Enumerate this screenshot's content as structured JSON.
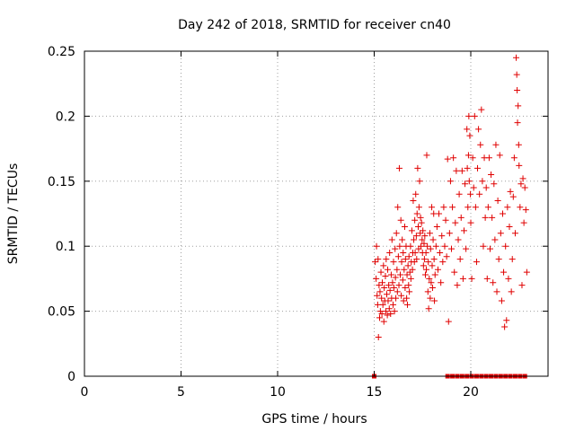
{
  "chart_data": {
    "type": "scatter",
    "title": "Day 242 of 2018, SRMTID for receiver cn40",
    "xlabel": "GPS time / hours",
    "ylabel": "SRMTID / TECUs",
    "xlim": [
      0,
      24
    ],
    "ylim": [
      0,
      0.25
    ],
    "xticks": [
      0,
      5,
      10,
      15,
      20
    ],
    "xtick_labels": [
      "0",
      "5",
      "10",
      "15",
      "20"
    ],
    "yticks": [
      0,
      0.05,
      0.1,
      0.15,
      0.2,
      0.25
    ],
    "ytick_labels": [
      "0",
      "0.05",
      "0.1",
      "0.15",
      "0.2",
      "0.25"
    ],
    "grid": true,
    "marker": "+",
    "color": "#e00000",
    "zero_markers_x": [
      15.0,
      18.8,
      19.05,
      19.3,
      19.55,
      19.8,
      20.05,
      20.3,
      20.55,
      20.8,
      21.05,
      21.3,
      21.55,
      21.8,
      22.05,
      22.3,
      22.55,
      22.8
    ],
    "points": [
      [
        15.05,
        0.088
      ],
      [
        15.1,
        0.075
      ],
      [
        15.12,
        0.1
      ],
      [
        15.15,
        0.062
      ],
      [
        15.18,
        0.055
      ],
      [
        15.2,
        0.09
      ],
      [
        15.22,
        0.03
      ],
      [
        15.25,
        0.07
      ],
      [
        15.28,
        0.045
      ],
      [
        15.3,
        0.065
      ],
      [
        15.32,
        0.05
      ],
      [
        15.35,
        0.08
      ],
      [
        15.38,
        0.06
      ],
      [
        15.4,
        0.048
      ],
      [
        15.42,
        0.072
      ],
      [
        15.45,
        0.055
      ],
      [
        15.48,
        0.085
      ],
      [
        15.5,
        0.042
      ],
      [
        15.52,
        0.068
      ],
      [
        15.55,
        0.058
      ],
      [
        15.58,
        0.077
      ],
      [
        15.6,
        0.05
      ],
      [
        15.62,
        0.09
      ],
      [
        15.65,
        0.063
      ],
      [
        15.68,
        0.047
      ],
      [
        15.7,
        0.082
      ],
      [
        15.72,
        0.058
      ],
      [
        15.75,
        0.07
      ],
      [
        15.78,
        0.052
      ],
      [
        15.8,
        0.095
      ],
      [
        15.82,
        0.066
      ],
      [
        15.85,
        0.048
      ],
      [
        15.88,
        0.078
      ],
      [
        15.9,
        0.06
      ],
      [
        15.92,
        0.105
      ],
      [
        15.95,
        0.072
      ],
      [
        15.98,
        0.055
      ],
      [
        16.0,
        0.088
      ],
      [
        16.02,
        0.068
      ],
      [
        16.05,
        0.05
      ],
      [
        16.08,
        0.098
      ],
      [
        16.1,
        0.076
      ],
      [
        16.12,
        0.06
      ],
      [
        16.15,
        0.11
      ],
      [
        16.18,
        0.082
      ],
      [
        16.2,
        0.065
      ],
      [
        16.22,
        0.13
      ],
      [
        16.25,
        0.092
      ],
      [
        16.28,
        0.07
      ],
      [
        16.3,
        0.16
      ],
      [
        16.32,
        0.1
      ],
      [
        16.35,
        0.078
      ],
      [
        16.38,
        0.12
      ],
      [
        16.4,
        0.062
      ],
      [
        16.42,
        0.088
      ],
      [
        16.45,
        0.105
      ],
      [
        16.48,
        0.074
      ],
      [
        16.5,
        0.095
      ],
      [
        16.52,
        0.058
      ],
      [
        16.55,
        0.082
      ],
      [
        16.58,
        0.115
      ],
      [
        16.6,
        0.068
      ],
      [
        16.62,
        0.09
      ],
      [
        16.65,
        0.1
      ],
      [
        16.68,
        0.06
      ],
      [
        16.7,
        0.078
      ],
      [
        16.72,
        0.055
      ],
      [
        16.75,
        0.085
      ],
      [
        16.78,
        0.07
      ],
      [
        16.8,
        0.092
      ],
      [
        16.82,
        0.065
      ],
      [
        16.85,
        0.08
      ],
      [
        16.88,
        0.1
      ],
      [
        16.9,
        0.075
      ],
      [
        16.92,
        0.088
      ],
      [
        16.95,
        0.112
      ],
      [
        16.98,
        0.082
      ],
      [
        17.0,
        0.095
      ],
      [
        17.02,
        0.135
      ],
      [
        17.05,
        0.105
      ],
      [
        17.08,
        0.088
      ],
      [
        17.1,
        0.12
      ],
      [
        17.12,
        0.095
      ],
      [
        17.15,
        0.14
      ],
      [
        17.18,
        0.108
      ],
      [
        17.2,
        0.09
      ],
      [
        17.22,
        0.125
      ],
      [
        17.25,
        0.16
      ],
      [
        17.28,
        0.115
      ],
      [
        17.3,
        0.098
      ],
      [
        17.32,
        0.13
      ],
      [
        17.35,
        0.15
      ],
      [
        17.38,
        0.11
      ],
      [
        17.4,
        0.122
      ],
      [
        17.42,
        0.1
      ],
      [
        17.45,
        0.118
      ],
      [
        17.48,
        0.105
      ],
      [
        17.5,
        0.095
      ],
      [
        17.52,
        0.112
      ],
      [
        17.55,
        0.085
      ],
      [
        17.58,
        0.102
      ],
      [
        17.6,
        0.09
      ],
      [
        17.62,
        0.108
      ],
      [
        17.65,
        0.078
      ],
      [
        17.68,
        0.095
      ],
      [
        17.7,
        0.082
      ],
      [
        17.72,
        0.17
      ],
      [
        17.75,
        0.1
      ],
      [
        17.78,
        0.065
      ],
      [
        17.8,
        0.088
      ],
      [
        17.82,
        0.052
      ],
      [
        17.85,
        0.075
      ],
      [
        17.88,
        0.11
      ],
      [
        17.9,
        0.06
      ],
      [
        17.92,
        0.098
      ],
      [
        17.95,
        0.072
      ],
      [
        17.98,
        0.13
      ],
      [
        18.0,
        0.085
      ],
      [
        18.02,
        0.068
      ],
      [
        18.05,
        0.105
      ],
      [
        18.08,
        0.125
      ],
      [
        18.1,
        0.09
      ],
      [
        18.12,
        0.058
      ],
      [
        18.15,
        0.078
      ],
      [
        18.2,
        0.1
      ],
      [
        18.25,
        0.115
      ],
      [
        18.3,
        0.082
      ],
      [
        18.35,
        0.125
      ],
      [
        18.4,
        0.095
      ],
      [
        18.45,
        0.072
      ],
      [
        18.5,
        0.108
      ],
      [
        18.55,
        0.088
      ],
      [
        18.6,
        0.13
      ],
      [
        18.65,
        0.1
      ],
      [
        18.7,
        0.12
      ],
      [
        18.75,
        0.092
      ],
      [
        18.8,
        0.167
      ],
      [
        18.85,
        0.042
      ],
      [
        18.9,
        0.11
      ],
      [
        18.95,
        0.15
      ],
      [
        19.0,
        0.098
      ],
      [
        19.05,
        0.13
      ],
      [
        19.1,
        0.168
      ],
      [
        19.15,
        0.08
      ],
      [
        19.2,
        0.118
      ],
      [
        19.25,
        0.158
      ],
      [
        19.3,
        0.07
      ],
      [
        19.35,
        0.105
      ],
      [
        19.4,
        0.14
      ],
      [
        19.45,
        0.09
      ],
      [
        19.5,
        0.122
      ],
      [
        19.55,
        0.158
      ],
      [
        19.6,
        0.075
      ],
      [
        19.65,
        0.112
      ],
      [
        19.7,
        0.148
      ],
      [
        19.75,
        0.098
      ],
      [
        19.8,
        0.19
      ],
      [
        19.82,
        0.16
      ],
      [
        19.85,
        0.13
      ],
      [
        19.88,
        0.17
      ],
      [
        19.9,
        0.2
      ],
      [
        19.92,
        0.15
      ],
      [
        19.95,
        0.185
      ],
      [
        19.98,
        0.14
      ],
      [
        20.0,
        0.118
      ],
      [
        20.05,
        0.075
      ],
      [
        20.1,
        0.168
      ],
      [
        20.15,
        0.145
      ],
      [
        20.2,
        0.2
      ],
      [
        20.25,
        0.13
      ],
      [
        20.3,
        0.088
      ],
      [
        20.35,
        0.16
      ],
      [
        20.4,
        0.19
      ],
      [
        20.45,
        0.14
      ],
      [
        20.5,
        0.178
      ],
      [
        20.55,
        0.205
      ],
      [
        20.6,
        0.15
      ],
      [
        20.65,
        0.1
      ],
      [
        20.7,
        0.168
      ],
      [
        20.75,
        0.122
      ],
      [
        20.8,
        0.145
      ],
      [
        20.85,
        0.075
      ],
      [
        20.9,
        0.13
      ],
      [
        20.95,
        0.168
      ],
      [
        21.0,
        0.098
      ],
      [
        21.05,
        0.155
      ],
      [
        21.1,
        0.122
      ],
      [
        21.15,
        0.072
      ],
      [
        21.2,
        0.148
      ],
      [
        21.25,
        0.105
      ],
      [
        21.3,
        0.178
      ],
      [
        21.35,
        0.065
      ],
      [
        21.4,
        0.135
      ],
      [
        21.45,
        0.09
      ],
      [
        21.5,
        0.17
      ],
      [
        21.55,
        0.11
      ],
      [
        21.6,
        0.058
      ],
      [
        21.65,
        0.125
      ],
      [
        21.7,
        0.08
      ],
      [
        21.75,
        0.038
      ],
      [
        21.8,
        0.1
      ],
      [
        21.85,
        0.043
      ],
      [
        21.9,
        0.13
      ],
      [
        21.95,
        0.075
      ],
      [
        22.0,
        0.115
      ],
      [
        22.05,
        0.142
      ],
      [
        22.1,
        0.065
      ],
      [
        22.15,
        0.09
      ],
      [
        22.2,
        0.138
      ],
      [
        22.25,
        0.168
      ],
      [
        22.3,
        0.11
      ],
      [
        22.35,
        0.245
      ],
      [
        22.38,
        0.232
      ],
      [
        22.4,
        0.22
      ],
      [
        22.42,
        0.195
      ],
      [
        22.45,
        0.208
      ],
      [
        22.48,
        0.178
      ],
      [
        22.5,
        0.162
      ],
      [
        22.55,
        0.13
      ],
      [
        22.6,
        0.148
      ],
      [
        22.65,
        0.07
      ],
      [
        22.7,
        0.152
      ],
      [
        22.75,
        0.118
      ],
      [
        22.8,
        0.145
      ],
      [
        22.85,
        0.128
      ],
      [
        22.9,
        0.08
      ]
    ]
  }
}
